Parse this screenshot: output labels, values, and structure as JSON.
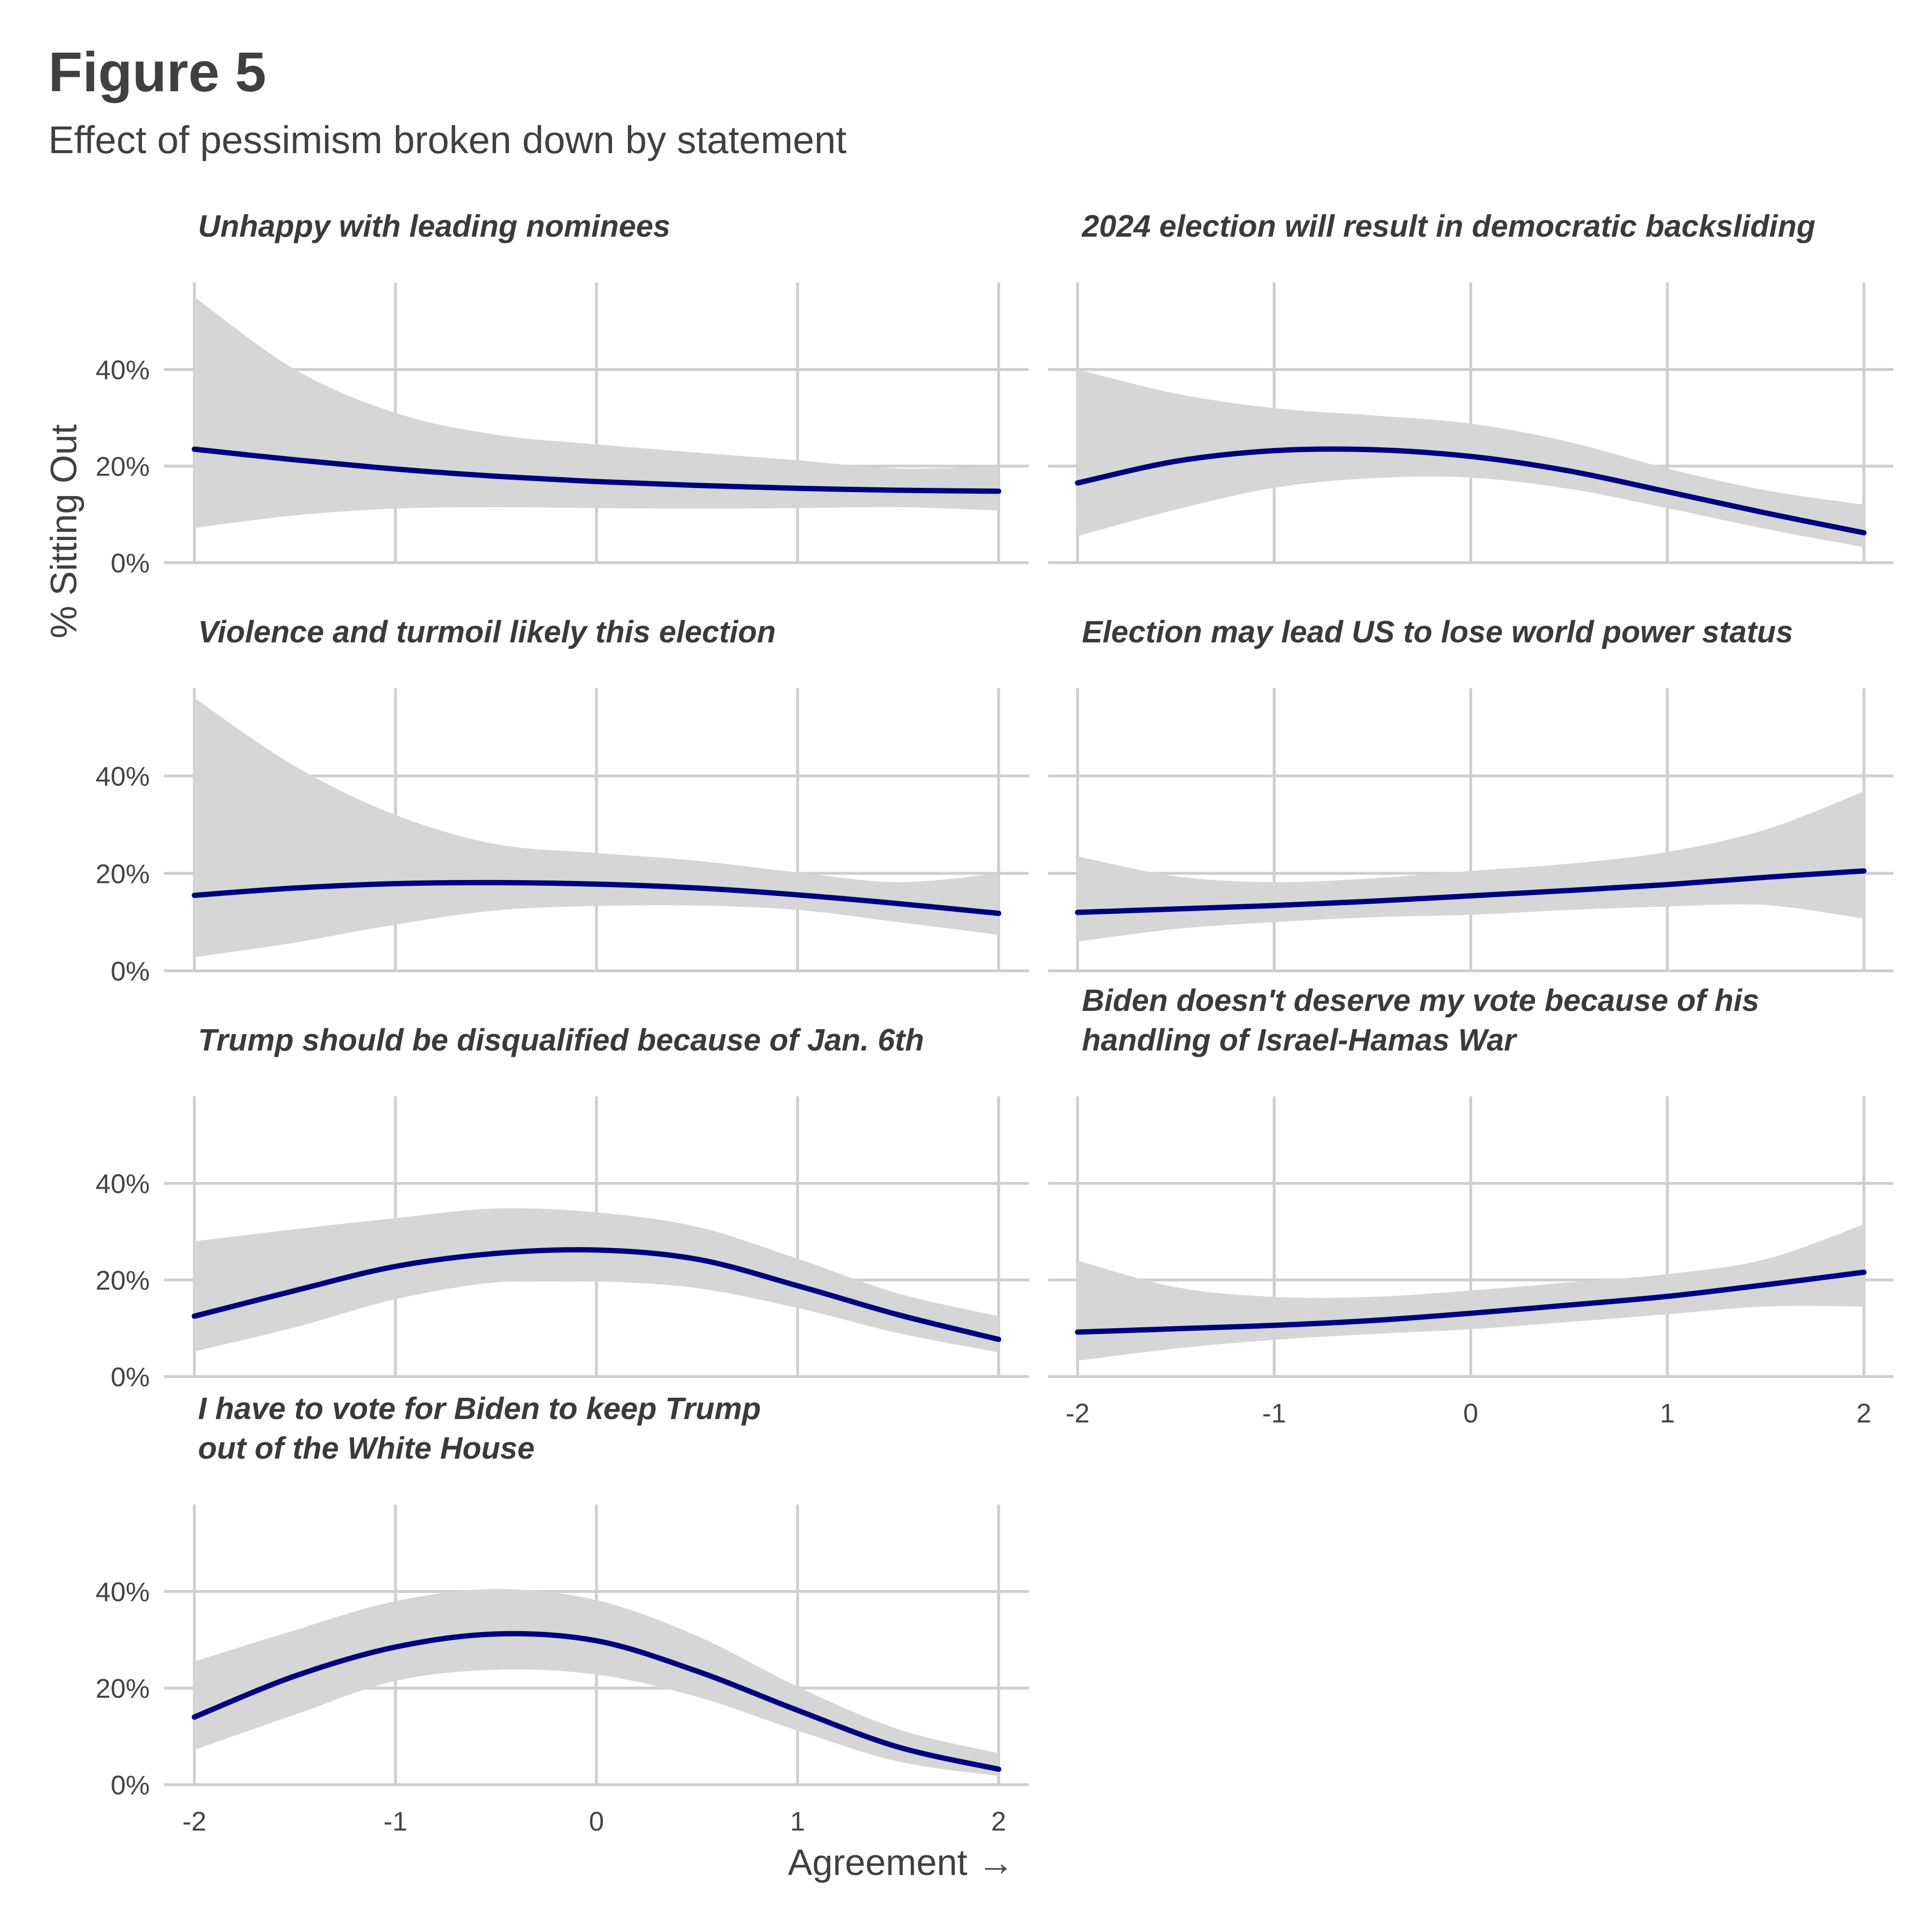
{
  "title": "Figure 5",
  "subtitle": "Effect of pessimism broken down by statement",
  "chart_data": {
    "type": "line",
    "facet_layout": "2 columns, 4 rows",
    "xlabel": "Agreement  →",
    "ylabel": "% Sitting Out",
    "x_ticks": [
      -2,
      -1,
      0,
      1,
      2
    ],
    "y_ticks": [
      0,
      20,
      40
    ],
    "y_tick_labels": [
      "0%",
      "20%",
      "40%"
    ],
    "xlim": [
      -2.15,
      2.15
    ],
    "ylim": [
      0,
      58
    ],
    "grid": true,
    "line_color": "#00007f",
    "ribbon_color": "#d6d6d6",
    "x": [
      -2,
      -1.5,
      -1,
      -0.5,
      0,
      0.5,
      1,
      1.5,
      2
    ],
    "panels": [
      {
        "title_lines": [
          "Unhappy with leading nominees"
        ],
        "y": [
          23.5,
          21.3,
          19.4,
          17.9,
          16.8,
          16.0,
          15.4,
          15.0,
          14.8
        ],
        "lower": [
          7.2,
          9.8,
          11.2,
          11.5,
          11.3,
          11.2,
          11.3,
          11.5,
          10.8
        ],
        "upper": [
          55.0,
          40.0,
          31.0,
          26.5,
          24.5,
          22.8,
          21.2,
          19.5,
          20.0
        ]
      },
      {
        "title_lines": [
          "2024 election will result in democratic backsliding"
        ],
        "y": [
          16.5,
          21.0,
          23.2,
          23.4,
          22.0,
          19.0,
          14.7,
          10.3,
          6.2
        ],
        "lower": [
          5.5,
          11.0,
          15.5,
          17.5,
          17.6,
          15.3,
          11.3,
          7.0,
          3.2
        ],
        "upper": [
          40.0,
          35.0,
          32.0,
          30.5,
          28.8,
          25.0,
          19.5,
          15.0,
          12.0
        ]
      },
      {
        "title_lines": [
          "Violence and turmoil likely this election"
        ],
        "y": [
          15.5,
          17.0,
          17.9,
          18.1,
          17.8,
          17.0,
          15.6,
          13.8,
          11.8
        ],
        "lower": [
          2.8,
          5.8,
          9.5,
          12.4,
          13.3,
          13.4,
          12.5,
          10.0,
          7.4
        ],
        "upper": [
          56.0,
          42.0,
          32.0,
          26.0,
          24.2,
          22.6,
          20.2,
          18.2,
          20.0
        ]
      },
      {
        "title_lines": [
          "Election may lead US to lose world power status"
        ],
        "y": [
          12.0,
          12.7,
          13.4,
          14.3,
          15.4,
          16.5,
          17.7,
          19.2,
          20.5
        ],
        "lower": [
          6.0,
          8.6,
          10.0,
          11.0,
          11.5,
          12.5,
          13.2,
          13.5,
          10.7
        ],
        "upper": [
          23.5,
          19.4,
          18.2,
          19.0,
          20.5,
          22.0,
          24.4,
          29.0,
          36.8
        ]
      },
      {
        "title_lines": [
          "Trump should be disqualified because of Jan. 6th"
        ],
        "y": [
          12.5,
          17.8,
          22.8,
          25.5,
          26.2,
          24.3,
          18.8,
          12.8,
          7.7
        ],
        "lower": [
          5.2,
          10.2,
          16.0,
          19.5,
          19.7,
          18.3,
          14.2,
          9.0,
          5.0
        ],
        "upper": [
          28.0,
          30.5,
          32.8,
          34.8,
          34.0,
          31.0,
          24.4,
          17.2,
          12.5
        ]
      },
      {
        "title_lines": [
          "Biden doesn't deserve my vote because of his",
          "handling of Israel-Hamas War"
        ],
        "y": [
          9.2,
          9.9,
          10.6,
          11.6,
          13.1,
          14.8,
          16.6,
          19.0,
          21.6
        ],
        "lower": [
          3.3,
          5.8,
          7.6,
          8.8,
          9.8,
          11.3,
          12.9,
          14.5,
          14.5
        ],
        "upper": [
          24.0,
          18.5,
          16.5,
          16.5,
          17.8,
          19.5,
          21.2,
          24.3,
          31.5
        ]
      },
      {
        "title_lines": [
          "I have to vote for Biden to keep Trump",
          "out of the White House"
        ],
        "y": [
          14.0,
          22.5,
          28.5,
          31.2,
          29.8,
          23.5,
          15.4,
          7.8,
          3.2
        ],
        "lower": [
          7.2,
          14.5,
          21.5,
          23.8,
          22.8,
          18.2,
          11.2,
          4.8,
          1.8
        ],
        "upper": [
          25.5,
          32.0,
          38.0,
          40.5,
          38.2,
          30.8,
          20.3,
          11.5,
          6.5
        ]
      }
    ]
  }
}
